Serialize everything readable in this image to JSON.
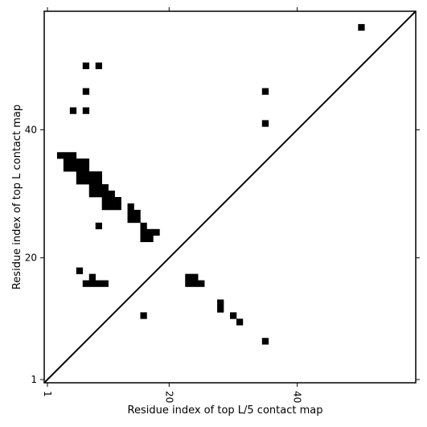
{
  "chart_data": {
    "type": "heatmap",
    "title": "",
    "xlabel": "Residue index of top L/5 contact map",
    "ylabel": "Residue index of top L contact map",
    "xlim": [
      0.5,
      58.5
    ],
    "ylim": [
      0.5,
      58.5
    ],
    "grid": false,
    "x_ticks": [
      {
        "value": 1,
        "label": "1"
      },
      {
        "value": 20,
        "label": "20"
      },
      {
        "value": 40,
        "label": "40"
      }
    ],
    "y_ticks": [
      {
        "value": 1,
        "label": "1"
      },
      {
        "value": 20,
        "label": "20"
      },
      {
        "value": 40,
        "label": "40"
      }
    ],
    "diagonal": {
      "from": [
        0.5,
        0.5
      ],
      "to": [
        58.5,
        58.5
      ]
    },
    "cells": [
      [
        50,
        56
      ],
      [
        7,
        50
      ],
      [
        9,
        50
      ],
      [
        7,
        46
      ],
      [
        35,
        46
      ],
      [
        5,
        43
      ],
      [
        7,
        43
      ],
      [
        35,
        41
      ],
      [
        3,
        36
      ],
      [
        4,
        36
      ],
      [
        5,
        36
      ],
      [
        4,
        35
      ],
      [
        5,
        35
      ],
      [
        6,
        35
      ],
      [
        7,
        35
      ],
      [
        4,
        34
      ],
      [
        5,
        34
      ],
      [
        6,
        34
      ],
      [
        7,
        34
      ],
      [
        6,
        33
      ],
      [
        7,
        33
      ],
      [
        8,
        33
      ],
      [
        9,
        33
      ],
      [
        6,
        32
      ],
      [
        7,
        32
      ],
      [
        8,
        32
      ],
      [
        9,
        32
      ],
      [
        8,
        31
      ],
      [
        9,
        31
      ],
      [
        10,
        31
      ],
      [
        8,
        30
      ],
      [
        9,
        30
      ],
      [
        10,
        30
      ],
      [
        11,
        30
      ],
      [
        10,
        29
      ],
      [
        11,
        29
      ],
      [
        12,
        29
      ],
      [
        10,
        28
      ],
      [
        11,
        28
      ],
      [
        12,
        28
      ],
      [
        14,
        28
      ],
      [
        14,
        27
      ],
      [
        15,
        27
      ],
      [
        14,
        26
      ],
      [
        15,
        26
      ],
      [
        16,
        25
      ],
      [
        9,
        25
      ],
      [
        16,
        24
      ],
      [
        17,
        24
      ],
      [
        18,
        24
      ],
      [
        16,
        23
      ],
      [
        17,
        23
      ],
      [
        6,
        18
      ],
      [
        8,
        17
      ],
      [
        23,
        17
      ],
      [
        24,
        17
      ],
      [
        7,
        16
      ],
      [
        8,
        16
      ],
      [
        9,
        16
      ],
      [
        10,
        16
      ],
      [
        23,
        16
      ],
      [
        24,
        16
      ],
      [
        25,
        16
      ],
      [
        28,
        13
      ],
      [
        28,
        12
      ],
      [
        16,
        11
      ],
      [
        30,
        11
      ],
      [
        31,
        10
      ],
      [
        35,
        7
      ]
    ]
  }
}
